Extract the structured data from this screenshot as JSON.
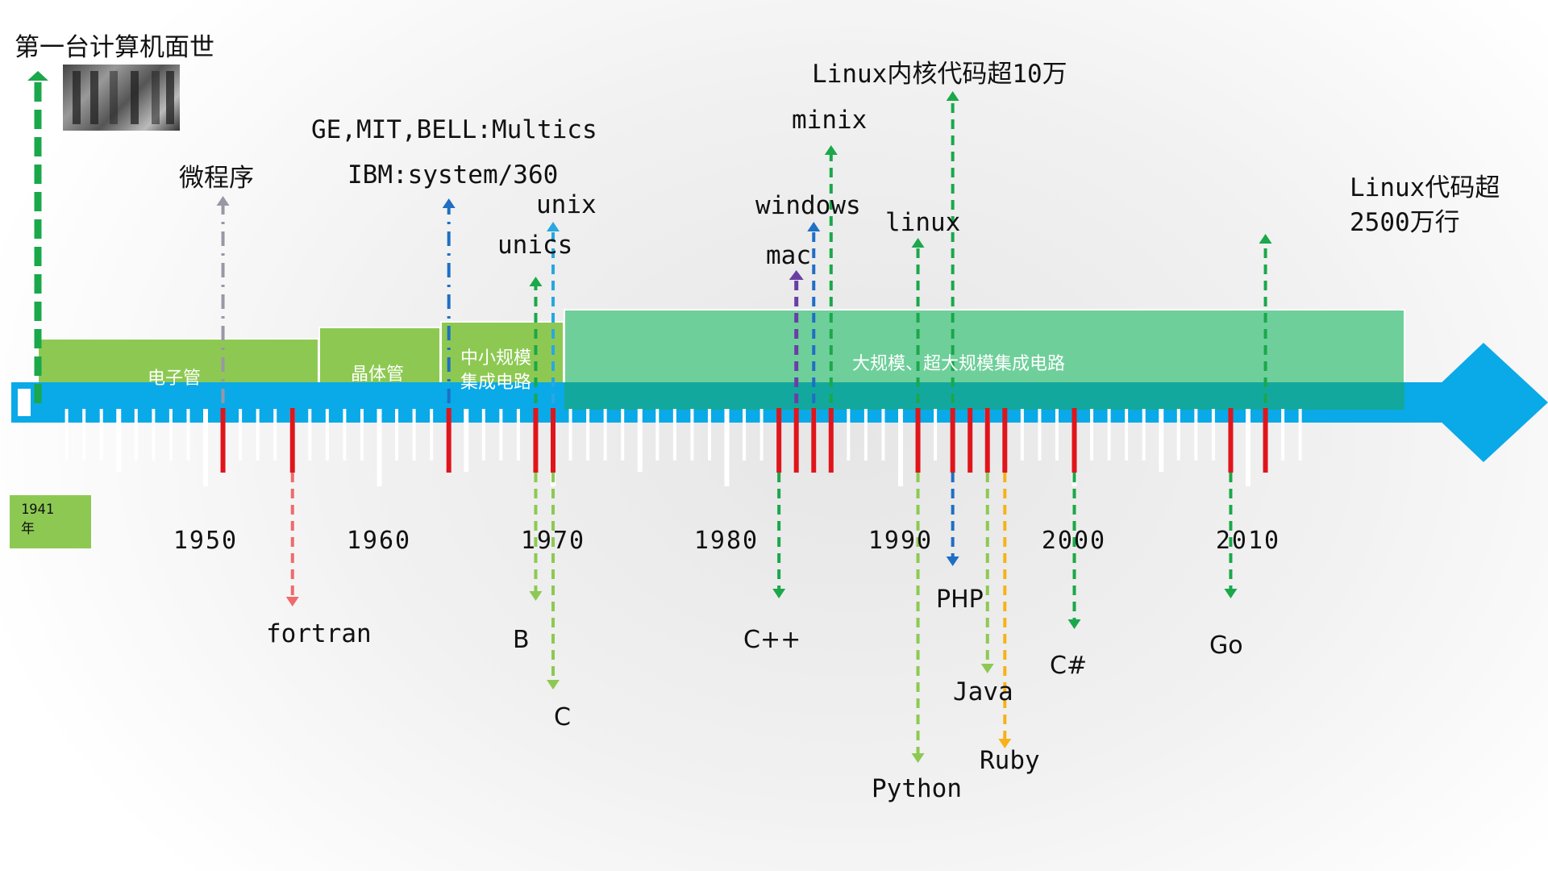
{
  "top_event": "第一台计算机面世",
  "start_badge": "1941\n年",
  "eras": [
    {
      "label": "电子管"
    },
    {
      "label": "晶体管"
    },
    {
      "label": "中小规模\n集成电路"
    },
    {
      "label": "大规模、超大规模集成电路"
    }
  ],
  "year_labels": [
    "1950",
    "1960",
    "1970",
    "1980",
    "1990",
    "2000",
    "2010"
  ],
  "upper_events": [
    {
      "label": "微程序",
      "year": 1951,
      "color": "#9b96a6"
    },
    {
      "label": "GE,MIT,BELL:Multics",
      "year": null,
      "color": ""
    },
    {
      "label": "IBM:system/360",
      "year": 1964,
      "color": "#1f6fc4"
    },
    {
      "label": "unix",
      "year": 1969.8,
      "color": "#2aa7e0"
    },
    {
      "label": "unics",
      "year": 1969,
      "color": "#1aa84a"
    },
    {
      "label": "mac",
      "year": 1984,
      "color": "#6a3fa5"
    },
    {
      "label": "windows",
      "year": 1985,
      "color": "#1f6fc4"
    },
    {
      "label": "minix",
      "year": 1986,
      "color": "#1aa84a"
    },
    {
      "label": "linux",
      "year": 1991,
      "color": "#1aa84a"
    },
    {
      "label": "Linux内核代码超10万",
      "year": 1993,
      "color": "#1aa84a"
    },
    {
      "label": "Linux代码超\n2500万行",
      "year": 2011,
      "color": "#1aa84a"
    }
  ],
  "lower_events": [
    {
      "label": "fortran",
      "year": 1957,
      "color": "#ef6b6b"
    },
    {
      "label": "B",
      "year": 1969,
      "color": "#8dc952"
    },
    {
      "label": "C",
      "year": 1970,
      "color": "#8dc952"
    },
    {
      "label": "C++",
      "year": 1983,
      "color": "#1aa84a"
    },
    {
      "label": "PHP",
      "year": 1995,
      "color": "#1f6fc4"
    },
    {
      "label": "Python",
      "year": 1991,
      "color": "#8dc952"
    },
    {
      "label": "Java",
      "year": 1995,
      "color": "#8dc952"
    },
    {
      "label": "Ruby",
      "year": 1995.5,
      "color": "#f7b21a"
    },
    {
      "label": "C#",
      "year": 2000,
      "color": "#1aa84a"
    },
    {
      "label": "Go",
      "year": 2009,
      "color": "#1aa84a"
    }
  ],
  "colors": {
    "axis": "#0aa9e8",
    "era_green": "#8dc952",
    "era_teal": "#6fcf9a",
    "band_teal": "#13a89e",
    "marker_red": "#e0151b",
    "first_arrow": "#1aa84a"
  }
}
